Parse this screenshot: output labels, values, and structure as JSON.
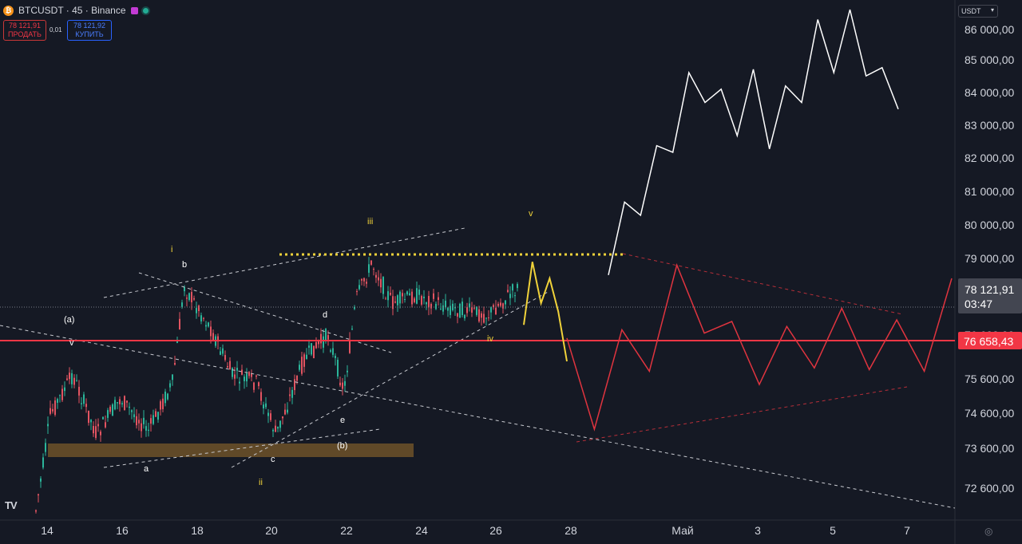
{
  "header": {
    "symbol": "BTCUSDT · 45 · Binance",
    "sell_price": "78 121,91",
    "sell_label": "ПРОДАТЬ",
    "spread": "0,01",
    "buy_price": "78 121,92",
    "buy_label": "КУПИТЬ"
  },
  "scale": {
    "currency": "USDT"
  },
  "chart_data": {
    "type": "line",
    "title": "",
    "price_axis_ticks": [
      "86 000,00",
      "85 000,00",
      "84 000,00",
      "83 000,00",
      "82 000,00",
      "81 000,00",
      "80 000,00",
      "79 000,00",
      "76 600,00",
      "75 600,00",
      "74 600,00",
      "73 600,00",
      "72 600,00"
    ],
    "time_axis_ticks": [
      "14",
      "16",
      "18",
      "20",
      "22",
      "24",
      "26",
      "28",
      "Май",
      "3",
      "5",
      "7"
    ],
    "current_price": "78 121,91",
    "countdown": "03:47",
    "marked_level": "76 658,43",
    "wave_labels": [
      "(a)",
      "b",
      "i",
      "iii",
      "d",
      "v",
      "iv",
      "e",
      "(b)",
      "c",
      "a",
      "ii",
      "v"
    ],
    "colors": {
      "candle_up": "#2bb59a",
      "candle_down": "#e25461",
      "projection_yellow": "#f0d23a",
      "projection_white": "#ffffff",
      "projection_red": "#e0343f",
      "level_line": "#f23645",
      "support_zone": "#7a5a2a"
    },
    "series": [
      {
        "values": [
          77000,
          78900,
          77650,
          78400,
          77400,
          75900
        ]
      },
      {
        "values": [
          78500,
          80700,
          80300,
          82400,
          82200,
          84600,
          83700,
          84100,
          82700,
          84700,
          82300,
          84200,
          83700,
          86200,
          84600,
          86500,
          84500,
          84750,
          83500
        ]
      },
      {
        "values": [
          76600,
          73850,
          76850,
          75600,
          78800,
          76750,
          77100,
          75200,
          76950,
          75700,
          77500,
          75650,
          77150,
          75600,
          78400
        ]
      }
    ]
  }
}
